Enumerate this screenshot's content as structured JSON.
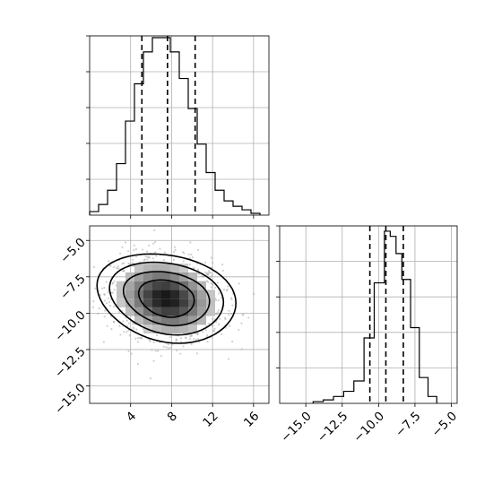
{
  "chart_data": [
    {
      "type": "histogram",
      "panel": "top-left",
      "x_range": [
        0,
        17.5
      ],
      "x_ticks": [
        4,
        8,
        12,
        16
      ],
      "x_tick_labels_shown": false,
      "bins": [
        {
          "x0": 0.0,
          "x1": 0.875,
          "v": 0.02
        },
        {
          "x0": 0.875,
          "x1": 1.75,
          "v": 0.06
        },
        {
          "x0": 1.75,
          "x1": 2.625,
          "v": 0.14
        },
        {
          "x0": 2.625,
          "x1": 3.5,
          "v": 0.29
        },
        {
          "x0": 3.5,
          "x1": 4.375,
          "v": 0.53
        },
        {
          "x0": 4.375,
          "x1": 5.25,
          "v": 0.74
        },
        {
          "x0": 5.25,
          "x1": 6.125,
          "v": 0.92
        },
        {
          "x0": 6.125,
          "x1": 7.0,
          "v": 1.0
        },
        {
          "x0": 7.0,
          "x1": 7.875,
          "v": 1.0
        },
        {
          "x0": 7.875,
          "x1": 8.75,
          "v": 0.92
        },
        {
          "x0": 8.75,
          "x1": 9.625,
          "v": 0.77
        },
        {
          "x0": 9.625,
          "x1": 10.5,
          "v": 0.6
        },
        {
          "x0": 10.5,
          "x1": 11.375,
          "v": 0.4
        },
        {
          "x0": 11.375,
          "x1": 12.25,
          "v": 0.24
        },
        {
          "x0": 12.25,
          "x1": 13.125,
          "v": 0.14
        },
        {
          "x0": 13.125,
          "x1": 14.0,
          "v": 0.08
        },
        {
          "x0": 14.0,
          "x1": 14.875,
          "v": 0.05
        },
        {
          "x0": 14.875,
          "x1": 15.75,
          "v": 0.03
        },
        {
          "x0": 15.75,
          "x1": 16.625,
          "v": 0.01
        }
      ],
      "quantiles": [
        5.1,
        7.6,
        10.3
      ]
    },
    {
      "type": "2d-histogram",
      "panel": "bottom-left",
      "x_range": [
        0,
        17.5
      ],
      "y_range": [
        -16.2,
        -4.0
      ],
      "x_ticks": [
        4,
        8,
        12,
        16
      ],
      "x_tick_labels": [
        "4",
        "8",
        "12",
        "16"
      ],
      "y_ticks": [
        -5.0,
        -7.5,
        -10.0,
        -12.5,
        -15.0
      ],
      "y_tick_labels": [
        "−5.0",
        "−7.5",
        "−10.0",
        "−12.5",
        "−15.0"
      ],
      "center": [
        7.5,
        -9.0
      ],
      "contour_levels": 4
    },
    {
      "type": "histogram",
      "panel": "bottom-right",
      "x_range": [
        -16.8,
        -4.6
      ],
      "x_ticks": [
        -15.0,
        -12.5,
        -10.0,
        -7.5,
        -5.0
      ],
      "x_tick_labels": [
        "−15.0",
        "−12.5",
        "−10.0",
        "−7.5",
        "−5.0"
      ],
      "bins": [
        {
          "x0": -14.5,
          "x1": -13.8,
          "v": 0.01
        },
        {
          "x0": -13.8,
          "x1": -13.1,
          "v": 0.02
        },
        {
          "x0": -13.1,
          "x1": -12.4,
          "v": 0.04
        },
        {
          "x0": -12.4,
          "x1": -11.7,
          "v": 0.07
        },
        {
          "x0": -11.7,
          "x1": -11.0,
          "v": 0.13
        },
        {
          "x0": -11.0,
          "x1": -10.3,
          "v": 0.38
        },
        {
          "x0": -10.3,
          "x1": -9.6,
          "v": 0.7
        },
        {
          "x0": -9.6,
          "x1": -9.2,
          "v": 1.0
        },
        {
          "x0": -9.2,
          "x1": -8.8,
          "v": 0.97
        },
        {
          "x0": -8.8,
          "x1": -8.4,
          "v": 0.87
        },
        {
          "x0": -8.4,
          "x1": -7.8,
          "v": 0.72
        },
        {
          "x0": -7.8,
          "x1": -7.2,
          "v": 0.44
        },
        {
          "x0": -7.2,
          "x1": -6.6,
          "v": 0.15
        },
        {
          "x0": -6.6,
          "x1": -6.0,
          "v": 0.04
        }
      ],
      "quantiles": [
        -10.6,
        -9.5,
        -8.3
      ]
    }
  ]
}
